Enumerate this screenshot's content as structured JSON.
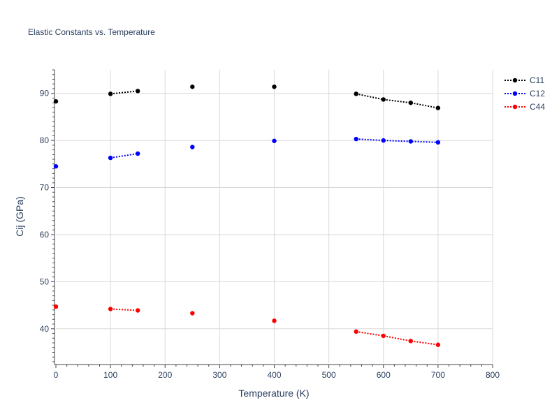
{
  "chart_data": {
    "type": "line",
    "title": "Elastic Constants vs. Temperature",
    "xlabel": "Temperature (K)",
    "ylabel": "Cij (GPa)",
    "xlim": [
      0,
      800
    ],
    "ylim": [
      32.7,
      95
    ],
    "xticks": [
      0,
      100,
      200,
      300,
      400,
      500,
      600,
      700,
      800
    ],
    "yticks": [
      40,
      50,
      60,
      70,
      80,
      90
    ],
    "grid": true,
    "legend_position": "top-right",
    "line_style": "dotted",
    "series": [
      {
        "name": "C11",
        "color": "#000000",
        "x": [
          0,
          100,
          150,
          250,
          400,
          550,
          600,
          650,
          700
        ],
        "y": [
          88.3,
          89.9,
          90.5,
          91.4,
          91.4,
          89.9,
          88.7,
          88.0,
          86.9
        ],
        "segments": [
          [
            0,
            0
          ],
          [
            1,
            2
          ],
          [
            3,
            3
          ],
          [
            4,
            4
          ],
          [
            5,
            8
          ]
        ]
      },
      {
        "name": "C12",
        "color": "#0000ff",
        "x": [
          0,
          100,
          150,
          250,
          400,
          550,
          600,
          650,
          700
        ],
        "y": [
          74.5,
          76.3,
          77.2,
          78.6,
          79.9,
          80.3,
          80.0,
          79.8,
          79.6
        ],
        "segments": [
          [
            0,
            0
          ],
          [
            1,
            2
          ],
          [
            3,
            3
          ],
          [
            4,
            4
          ],
          [
            5,
            8
          ]
        ]
      },
      {
        "name": "C44",
        "color": "#ff0000",
        "x": [
          0,
          100,
          150,
          250,
          400,
          550,
          600,
          650,
          700
        ],
        "y": [
          44.7,
          44.2,
          43.9,
          43.3,
          41.7,
          39.4,
          38.5,
          37.4,
          36.6
        ],
        "segments": [
          [
            0,
            0
          ],
          [
            1,
            2
          ],
          [
            3,
            3
          ],
          [
            4,
            4
          ],
          [
            5,
            8
          ]
        ]
      }
    ]
  }
}
